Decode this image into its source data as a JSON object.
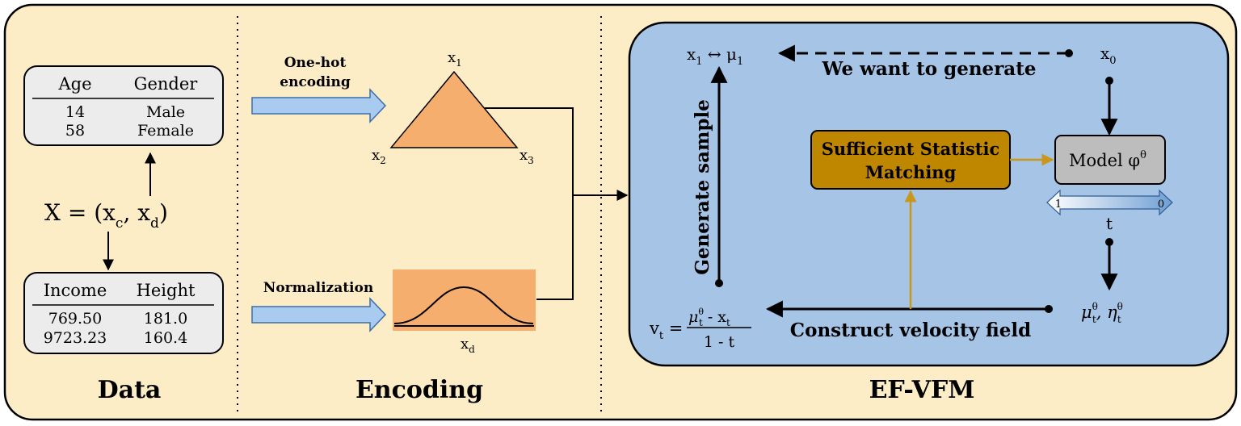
{
  "sections": {
    "data": "Data",
    "encoding": "Encoding",
    "efvfm": "EF-VFM"
  },
  "data_panel": {
    "table1": {
      "headers": [
        "Age",
        "Gender"
      ],
      "rows": [
        [
          "14",
          "Male"
        ],
        [
          "58",
          "Female"
        ]
      ]
    },
    "table2": {
      "headers": [
        "Income",
        "Height"
      ],
      "rows": [
        [
          "769.50",
          "181.0"
        ],
        [
          "9723.23",
          "160.4"
        ]
      ]
    },
    "x_eq": "X = (x",
    "x_c_sub": "c",
    "x_mid": ", x",
    "x_d_sub": "d",
    "x_close": ")"
  },
  "encoding_panel": {
    "onehot_line1": "One-hot",
    "onehot_line2": "encoding",
    "normalization": "Normalization",
    "x1": "x",
    "x1_sub": "1",
    "x2": "x",
    "x2_sub": "2",
    "x3": "x",
    "x3_sub": "3",
    "xd": "x",
    "xd_sub": "d"
  },
  "efvfm_panel": {
    "top_left": "x",
    "top_left_sub": "1",
    "top_left_rest": " ↔ μ",
    "top_left_mu_sub": "1",
    "x0": "x",
    "x0_sub": "0",
    "we_want": "We want to generate",
    "generate_sample": "Generate sample",
    "ssm_line1": "Sufficient Statistic",
    "ssm_line2": "Matching",
    "model": "Model φ",
    "model_sup": "θ",
    "t_left": "1",
    "t_right": "0",
    "t_label": "t",
    "mu_eta": "μ",
    "mu_sup": "θ",
    "mu_sub": "t",
    "eta": ", η",
    "eta_sup": "θ",
    "eta_sub": "t",
    "construct": "Construct velocity field",
    "vt": "v",
    "vt_sub": "t",
    "vt_eq": " = ",
    "frac_num_mu": "μ",
    "frac_num_sup": "θ",
    "frac_num_sub": "t",
    "frac_num_rest": " - x",
    "frac_num_x_sub": "t",
    "frac_den": "1 - t"
  },
  "colors": {
    "background": "#fcedc6",
    "blue_panel": "#a6c4e6",
    "ssm_fill": "#bf8600",
    "model_fill": "#bdbdbd",
    "orange": "#f5ae6e",
    "arrow_blue": "#a8cbef",
    "gold_line": "#c8971c"
  }
}
